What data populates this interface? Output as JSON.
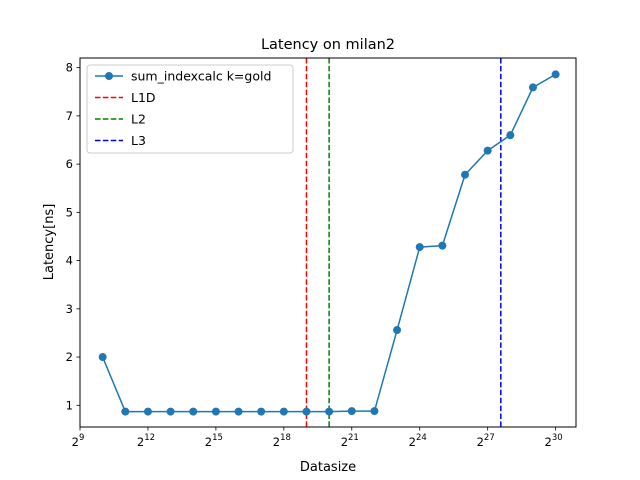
{
  "chart_data": {
    "type": "line",
    "title": "Latency on milan2",
    "xlabel": "Datasize",
    "ylabel": "Latency[ns]",
    "x_scale": "log2",
    "x_ticks": [
      {
        "base": "2",
        "exp": "9",
        "value": 9
      },
      {
        "base": "2",
        "exp": "12",
        "value": 12
      },
      {
        "base": "2",
        "exp": "15",
        "value": 15
      },
      {
        "base": "2",
        "exp": "18",
        "value": 18
      },
      {
        "base": "2",
        "exp": "21",
        "value": 21
      },
      {
        "base": "2",
        "exp": "24",
        "value": 24
      },
      {
        "base": "2",
        "exp": "27",
        "value": 27
      },
      {
        "base": "2",
        "exp": "30",
        "value": 30
      }
    ],
    "y_ticks": [
      1,
      2,
      3,
      4,
      5,
      6,
      7,
      8
    ],
    "xlim_log2": [
      9,
      30.9
    ],
    "ylim": [
      0.55,
      8.2
    ],
    "grid": false,
    "legend_position": "top-left",
    "series": [
      {
        "name": "sum_indexcalc k=gold",
        "color": "#1f77b4",
        "x_log2": [
          10,
          11,
          12,
          13,
          14,
          15,
          16,
          17,
          18,
          19,
          20,
          21,
          22,
          23,
          24,
          25,
          26,
          27,
          28,
          29,
          30
        ],
        "values": [
          2.0,
          0.87,
          0.87,
          0.87,
          0.87,
          0.87,
          0.87,
          0.87,
          0.87,
          0.87,
          0.87,
          0.88,
          0.88,
          2.56,
          4.28,
          4.31,
          5.78,
          6.28,
          6.6,
          7.59,
          7.86
        ]
      }
    ],
    "vlines": [
      {
        "name": "L1D",
        "color": "#ff0000",
        "x_log2": 19
      },
      {
        "name": "L2",
        "color": "#008000",
        "x_log2": 20
      },
      {
        "name": "L3",
        "color": "#0000ff",
        "x_log2": 27.58
      }
    ]
  }
}
